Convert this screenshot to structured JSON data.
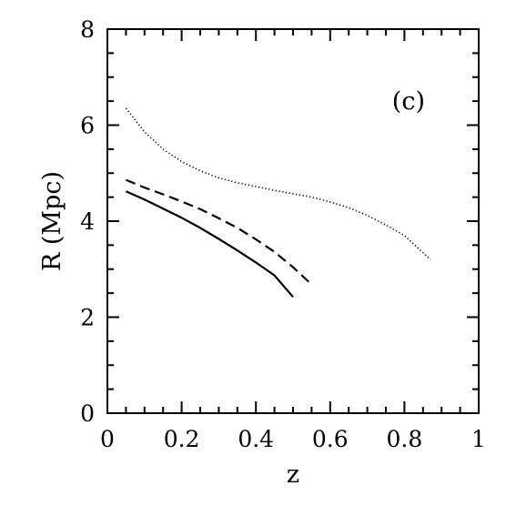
{
  "chart_data": {
    "type": "line",
    "xlabel": "z",
    "ylabel": "R  (Mpc)",
    "annotation": "(c)",
    "xlim": [
      0,
      1
    ],
    "ylim": [
      0,
      8
    ],
    "x_ticks_major": [
      0,
      0.2,
      0.4,
      0.6,
      0.8,
      1
    ],
    "x_tick_labels": [
      "0",
      "0.2",
      "0.4",
      "0.6",
      "0.8",
      "1"
    ],
    "y_ticks_major": [
      0,
      2,
      4,
      6,
      8
    ],
    "y_tick_labels": [
      "0",
      "2",
      "4",
      "6",
      "8"
    ],
    "x_minor_step": 0.05,
    "y_minor_step": 0.5,
    "grid": false,
    "series": [
      {
        "style": "solid",
        "x": [
          0.05,
          0.1,
          0.15,
          0.2,
          0.25,
          0.3,
          0.35,
          0.4,
          0.45,
          0.5
        ],
        "y": [
          4.62,
          4.45,
          4.26,
          4.07,
          3.86,
          3.63,
          3.39,
          3.14,
          2.87,
          2.42
        ]
      },
      {
        "style": "dashed",
        "x": [
          0.05,
          0.1,
          0.15,
          0.2,
          0.25,
          0.3,
          0.35,
          0.4,
          0.45,
          0.5,
          0.55
        ],
        "y": [
          4.86,
          4.7,
          4.56,
          4.41,
          4.25,
          4.06,
          3.86,
          3.62,
          3.36,
          3.04,
          2.68
        ]
      },
      {
        "style": "dotted",
        "x": [
          0.05,
          0.1,
          0.15,
          0.2,
          0.25,
          0.3,
          0.35,
          0.4,
          0.45,
          0.5,
          0.55,
          0.6,
          0.65,
          0.7,
          0.75,
          0.8,
          0.87
        ],
        "y": [
          6.35,
          5.86,
          5.5,
          5.24,
          5.05,
          4.9,
          4.8,
          4.72,
          4.64,
          4.57,
          4.5,
          4.4,
          4.28,
          4.12,
          3.92,
          3.7,
          3.2
        ]
      }
    ]
  }
}
